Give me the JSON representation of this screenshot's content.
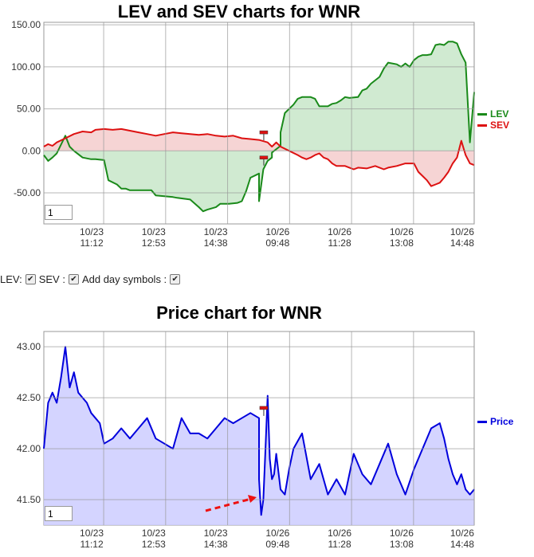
{
  "chart_data": [
    {
      "type": "area",
      "title": "LEV and SEV charts for WNR",
      "ylim": [
        -87,
        153
      ],
      "y_ticks": [
        "150.00",
        "100.00",
        "50.00",
        "0.00",
        "-50.00"
      ],
      "y_tick_values": [
        150,
        100,
        50,
        0,
        -50
      ],
      "x_tick_labels": [
        [
          "10/23",
          "11:12"
        ],
        [
          "10/23",
          "12:53"
        ],
        [
          "10/23",
          "14:38"
        ],
        [
          "10/26",
          "09:48"
        ],
        [
          "10/26",
          "11:28"
        ],
        [
          "10/26",
          "13:08"
        ],
        [
          "10/26",
          "14:48"
        ]
      ],
      "x_tick_positions": [
        0.139,
        0.283,
        0.427,
        0.571,
        0.715,
        0.859,
        0.9998
      ],
      "series": [
        {
          "name": "LEV",
          "color": "#1a8a1a",
          "fill": "#c8e6c9",
          "x": [
            0,
            0.01,
            0.02,
            0.03,
            0.05,
            0.06,
            0.07,
            0.09,
            0.11,
            0.12,
            0.14,
            0.15,
            0.17,
            0.18,
            0.19,
            0.2,
            0.25,
            0.26,
            0.3,
            0.31,
            0.34,
            0.36,
            0.37,
            0.38,
            0.4,
            0.41,
            0.43,
            0.45,
            0.46,
            0.47,
            0.48,
            0.5,
            0.5,
            0.51,
            0.52,
            0.53,
            0.53,
            0.55,
            0.55,
            0.56,
            0.58,
            0.59,
            0.6,
            0.6,
            0.61,
            0.62,
            0.63,
            0.64,
            0.66,
            0.67,
            0.68,
            0.69,
            0.7,
            0.71,
            0.73,
            0.74,
            0.75,
            0.76,
            0.78,
            0.79,
            0.8,
            0.82,
            0.83,
            0.84,
            0.85,
            0.86,
            0.87,
            0.88,
            0.89,
            0.9,
            0.91,
            0.92,
            0.93,
            0.94,
            0.95,
            0.96,
            0.97,
            0.98,
            0.99,
            1
          ],
          "y": [
            -5,
            -12,
            -8,
            -3,
            18,
            5,
            0,
            -8,
            -10,
            -10,
            -11,
            -35,
            -40,
            -45,
            -45,
            -47,
            -47,
            -53,
            -55,
            -56,
            -58,
            -67,
            -72,
            -70,
            -67,
            -63,
            -63,
            -62,
            -60,
            -48,
            -32,
            -27,
            -60,
            -22,
            -12,
            -8,
            -2,
            6,
            22,
            45,
            55,
            62,
            64,
            64,
            64,
            64,
            62,
            53,
            53,
            56,
            57,
            60,
            64,
            63,
            64,
            72,
            74,
            80,
            88,
            98,
            105,
            103,
            100,
            104,
            100,
            108,
            112,
            114,
            114,
            115,
            126,
            127,
            126,
            130,
            130,
            128,
            115,
            105,
            10,
            70
          ]
        },
        {
          "name": "SEV",
          "color": "#dd1111",
          "fill": "#f5cccc",
          "x": [
            0,
            0.01,
            0.02,
            0.03,
            0.05,
            0.07,
            0.09,
            0.11,
            0.12,
            0.14,
            0.16,
            0.18,
            0.2,
            0.22,
            0.24,
            0.26,
            0.28,
            0.3,
            0.32,
            0.34,
            0.36,
            0.38,
            0.4,
            0.42,
            0.44,
            0.46,
            0.48,
            0.5,
            0.52,
            0.53,
            0.54,
            0.55,
            0.57,
            0.59,
            0.6,
            0.61,
            0.62,
            0.63,
            0.64,
            0.65,
            0.66,
            0.67,
            0.68,
            0.7,
            0.71,
            0.72,
            0.73,
            0.75,
            0.77,
            0.79,
            0.8,
            0.82,
            0.84,
            0.86,
            0.87,
            0.88,
            0.89,
            0.9,
            0.91,
            0.92,
            0.93,
            0.94,
            0.95,
            0.96,
            0.97,
            0.98,
            0.99,
            1
          ],
          "y": [
            5,
            8,
            6,
            10,
            15,
            20,
            23,
            22,
            25,
            26,
            25,
            26,
            24,
            22,
            20,
            18,
            20,
            22,
            21,
            20,
            19,
            20,
            18,
            17,
            18,
            15,
            14,
            13,
            10,
            5,
            10,
            5,
            0,
            -5,
            -8,
            -10,
            -8,
            -5,
            -3,
            -8,
            -10,
            -15,
            -18,
            -18,
            -20,
            -22,
            -20,
            -21,
            -18,
            -22,
            -20,
            -18,
            -15,
            -15,
            -25,
            -30,
            -35,
            -42,
            -40,
            -38,
            -32,
            -25,
            -15,
            -8,
            12,
            -5,
            -15,
            -17
          ]
        }
      ],
      "markers": [
        {
          "x": 0.511,
          "y": 22
        },
        {
          "x": 0.511,
          "y": -8
        }
      ],
      "legend_position": "right",
      "grid": true,
      "input_value": "1"
    },
    {
      "type": "area",
      "title": "Price chart for WNR",
      "ylim": [
        41.25,
        43.15
      ],
      "y_ticks": [
        "43.00",
        "42.50",
        "42.00",
        "41.50"
      ],
      "y_tick_values": [
        43.0,
        42.5,
        42.0,
        41.5
      ],
      "x_tick_labels": [
        [
          "10/23",
          "11:12"
        ],
        [
          "10/23",
          "12:53"
        ],
        [
          "10/23",
          "14:38"
        ],
        [
          "10/26",
          "09:48"
        ],
        [
          "10/26",
          "11:28"
        ],
        [
          "10/26",
          "13:08"
        ],
        [
          "10/26",
          "14:48"
        ]
      ],
      "x_tick_positions": [
        0.139,
        0.283,
        0.427,
        0.571,
        0.715,
        0.859,
        0.9998
      ],
      "series": [
        {
          "name": "Price",
          "color": "#0000dd",
          "fill": "#ccccff",
          "x": [
            0,
            0.01,
            0.02,
            0.03,
            0.04,
            0.05,
            0.06,
            0.07,
            0.08,
            0.09,
            0.1,
            0.11,
            0.12,
            0.13,
            0.14,
            0.16,
            0.18,
            0.2,
            0.22,
            0.24,
            0.26,
            0.28,
            0.3,
            0.32,
            0.34,
            0.36,
            0.38,
            0.4,
            0.42,
            0.44,
            0.46,
            0.48,
            0.5,
            0.5,
            0.505,
            0.51,
            0.515,
            0.52,
            0.525,
            0.53,
            0.535,
            0.54,
            0.55,
            0.56,
            0.57,
            0.58,
            0.6,
            0.62,
            0.64,
            0.66,
            0.68,
            0.7,
            0.72,
            0.74,
            0.76,
            0.78,
            0.8,
            0.82,
            0.84,
            0.86,
            0.88,
            0.9,
            0.92,
            0.93,
            0.94,
            0.95,
            0.96,
            0.97,
            0.98,
            0.99,
            1
          ],
          "y": [
            42.0,
            42.45,
            42.55,
            42.45,
            42.7,
            43.0,
            42.6,
            42.75,
            42.55,
            42.5,
            42.45,
            42.35,
            42.3,
            42.25,
            42.05,
            42.1,
            42.2,
            42.1,
            42.2,
            42.3,
            42.1,
            42.05,
            42.0,
            42.3,
            42.15,
            42.15,
            42.1,
            42.2,
            42.3,
            42.25,
            42.3,
            42.35,
            42.3,
            41.7,
            41.35,
            41.5,
            42.0,
            42.52,
            41.9,
            41.7,
            41.75,
            41.95,
            41.6,
            41.55,
            41.8,
            42.0,
            42.15,
            41.7,
            41.85,
            41.55,
            41.7,
            41.55,
            41.95,
            41.75,
            41.65,
            41.85,
            42.05,
            41.75,
            41.55,
            41.8,
            42.0,
            42.2,
            42.25,
            42.1,
            41.9,
            41.75,
            41.65,
            41.75,
            41.6,
            41.55,
            41.6
          ]
        }
      ],
      "markers": [
        {
          "x": 0.511,
          "y": 42.4
        }
      ],
      "legend_position": "right",
      "grid": true,
      "input_value": "1"
    }
  ],
  "controls": {
    "lev_label": "LEV:",
    "sev_label": "SEV :",
    "day_symbols_label": "Add day symbols :",
    "check_glyph": "✔"
  }
}
